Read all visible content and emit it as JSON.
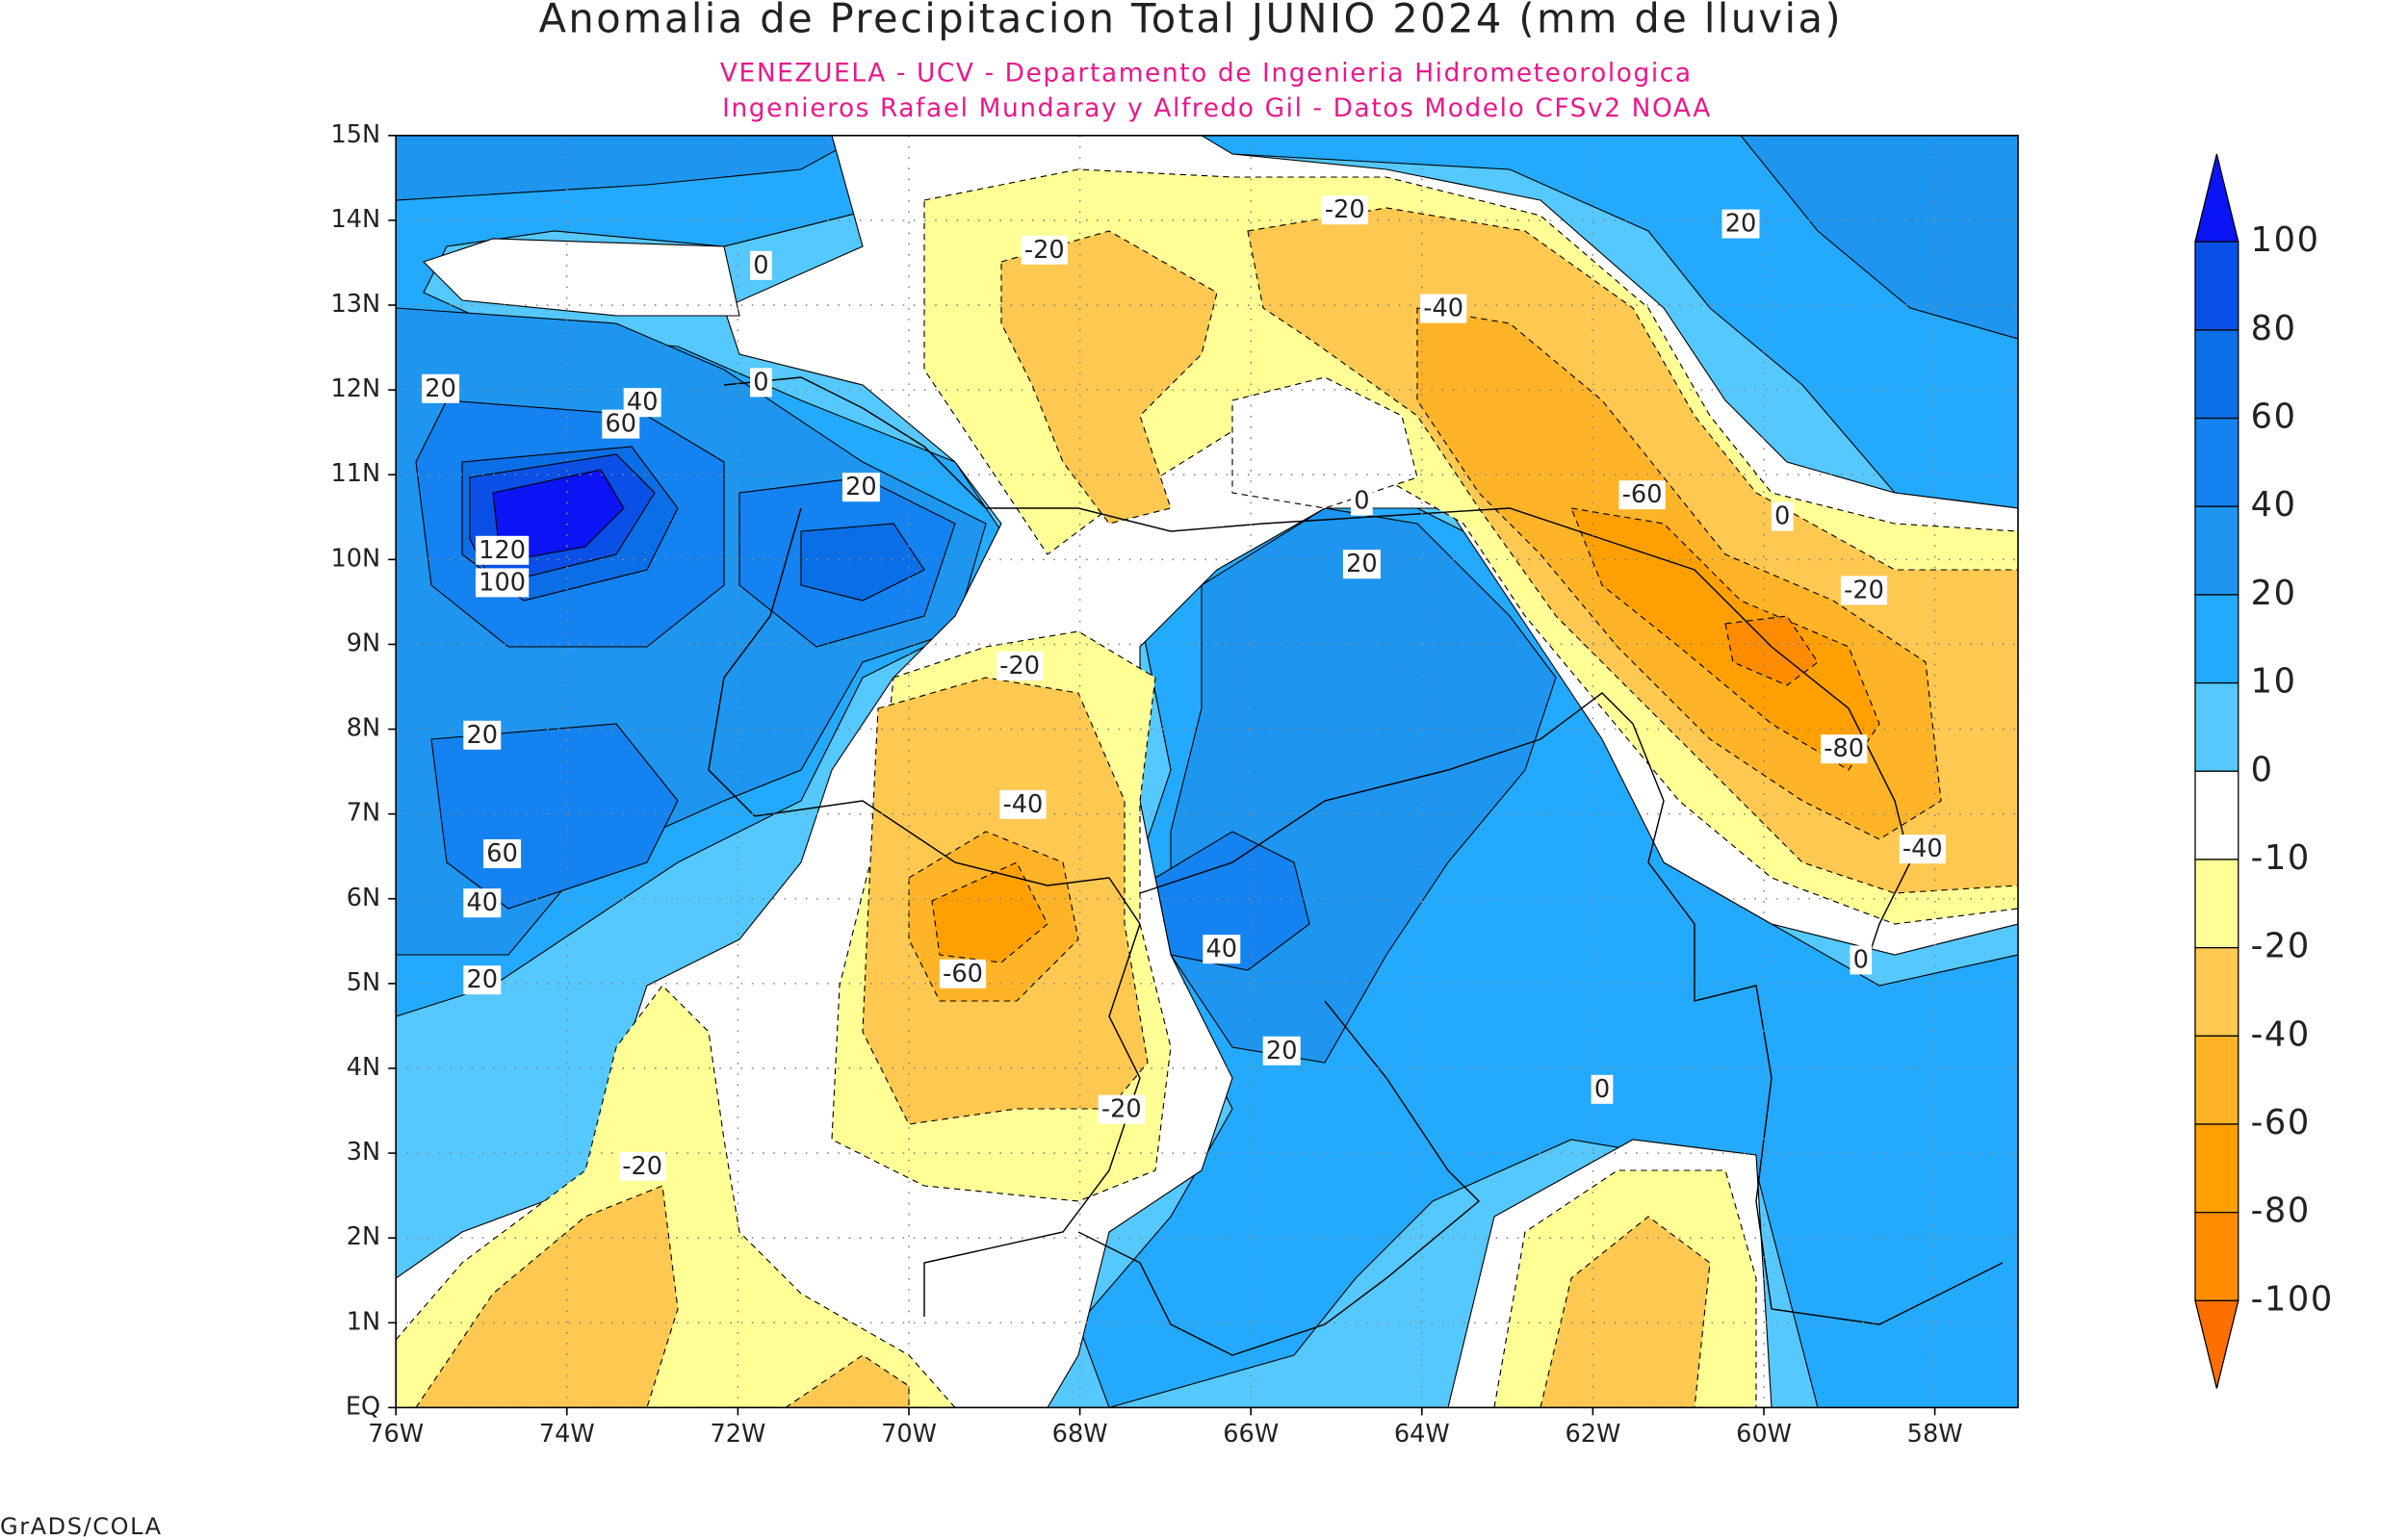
{
  "title": "Anomalia de Precipitacion Total JUNIO 2024 (mm de lluvia)",
  "subtitle_lines": [
    "VENEZUELA - UCV - Departamento de Ingenieria Hidrometeorologica",
    "Ingenieros Rafael Mundaray y Alfredo Gil - Datos Modelo CFSv2 NOAA"
  ],
  "lat_labels": [
    "EQ",
    "1N",
    "2N",
    "3N",
    "4N",
    "5N",
    "6N",
    "7N",
    "8N",
    "9N",
    "10N",
    "11N",
    "12N",
    "13N",
    "14N",
    "15N"
  ],
  "lon_labels": [
    "76W",
    "74W",
    "72W",
    "70W",
    "68W",
    "66W",
    "64W",
    "62W",
    "60W",
    "58W"
  ],
  "colorbar": {
    "labels": [
      "100",
      "80",
      "60",
      "40",
      "20",
      "10",
      "0",
      "-10",
      "-20",
      "-40",
      "-60",
      "-80",
      "-100"
    ],
    "colors": [
      "#0a14f5",
      "#0a50e6",
      "#0a6ee6",
      "#1482f0",
      "#1e96f0",
      "#23aaff",
      "#55c8ff",
      "#ffffff",
      "#ffff96",
      "#ffc850",
      "#ffb428",
      "#ffa000",
      "#ff8c00",
      "#ff6e00"
    ]
  },
  "contour_labels": [
    "-20",
    "-20",
    "0",
    "20",
    "-40",
    "0",
    "20",
    "40",
    "60",
    "-60",
    "20",
    "0",
    "0",
    "120",
    "100",
    "20",
    "-20",
    "-20",
    "20",
    "-80",
    "-40",
    "-40",
    "60",
    "40",
    "40",
    "-60",
    "20",
    "0",
    "20",
    "0",
    "-20",
    "-20"
  ],
  "footer": "GrADS/COLA"
}
